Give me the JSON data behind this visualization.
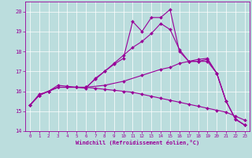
{
  "xlabel": "Windchill (Refroidissement éolien,°C)",
  "bg_color": "#bbdddd",
  "line_color": "#990099",
  "xlim": [
    -0.5,
    23.5
  ],
  "ylim": [
    14.0,
    20.5
  ],
  "yticks": [
    14,
    15,
    16,
    17,
    18,
    19,
    20
  ],
  "xticks": [
    0,
    1,
    2,
    3,
    4,
    5,
    6,
    7,
    8,
    9,
    10,
    11,
    12,
    13,
    14,
    15,
    16,
    17,
    18,
    19,
    20,
    21,
    22,
    23
  ],
  "lines": [
    {
      "x": [
        0,
        1,
        2,
        3,
        4,
        5,
        6,
        8,
        10,
        12,
        14,
        15,
        16,
        17,
        18,
        19,
        20,
        21,
        22,
        23
      ],
      "y": [
        15.3,
        15.8,
        16.0,
        16.2,
        16.2,
        16.2,
        16.2,
        16.3,
        16.5,
        16.8,
        17.1,
        17.2,
        17.4,
        17.5,
        17.6,
        17.65,
        16.9,
        15.5,
        14.6,
        14.3
      ]
    },
    {
      "x": [
        0,
        1,
        2,
        3,
        4,
        5,
        6,
        7,
        8,
        9,
        10,
        11,
        12,
        13,
        14,
        15,
        16,
        17,
        18,
        19,
        20,
        21,
        22,
        23
      ],
      "y": [
        15.3,
        15.85,
        16.0,
        16.3,
        16.25,
        16.2,
        16.15,
        16.65,
        17.0,
        17.35,
        17.65,
        19.5,
        19.0,
        19.7,
        19.7,
        20.1,
        18.0,
        17.5,
        17.5,
        17.5,
        16.9,
        15.5,
        14.6,
        14.3
      ]
    },
    {
      "x": [
        0,
        1,
        2,
        3,
        4,
        5,
        6,
        7,
        8,
        9,
        10,
        11,
        12,
        13,
        14,
        15,
        16,
        17,
        18,
        19,
        20,
        21,
        22,
        23
      ],
      "y": [
        15.3,
        15.8,
        16.0,
        16.2,
        16.2,
        16.2,
        16.2,
        16.6,
        17.0,
        17.4,
        17.8,
        18.2,
        18.5,
        18.9,
        19.4,
        19.1,
        18.1,
        17.5,
        17.5,
        17.6,
        16.9,
        15.5,
        14.6,
        14.3
      ]
    },
    {
      "x": [
        0,
        1,
        2,
        3,
        4,
        5,
        6,
        7,
        8,
        9,
        10,
        11,
        12,
        13,
        14,
        15,
        16,
        17,
        18,
        19,
        20,
        21,
        22,
        23
      ],
      "y": [
        15.3,
        15.8,
        16.0,
        16.2,
        16.2,
        16.2,
        16.2,
        16.15,
        16.1,
        16.05,
        16.0,
        15.95,
        15.85,
        15.75,
        15.65,
        15.55,
        15.45,
        15.35,
        15.25,
        15.15,
        15.05,
        14.95,
        14.75,
        14.55
      ]
    }
  ]
}
